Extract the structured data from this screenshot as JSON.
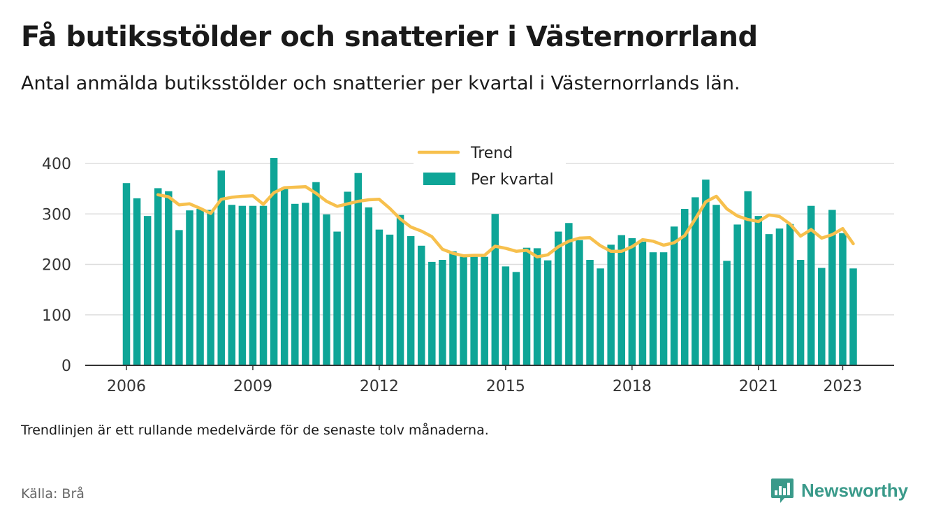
{
  "header": {
    "title": "Få butiksstölder och snatterier i Västernorrland",
    "subtitle": "Antal anmälda butiksstölder och snatterier per kvartal i Västernorrlands län."
  },
  "footer": {
    "note": "Trendlinjen är ett rullande medelvärde för de senaste tolv månaderna.",
    "source": "Källa: Brå",
    "brand": "Newsworthy"
  },
  "colors": {
    "bar": "#0ea597",
    "trend": "#f7c04d",
    "grid": "#dddddd",
    "axis": "#333333",
    "brand": "#3a9a8a"
  },
  "chart_data": {
    "type": "bar",
    "ylim": [
      0,
      450
    ],
    "y_ticks": [
      0,
      100,
      200,
      300,
      400
    ],
    "x_ticks": [
      "2006",
      "2009",
      "2012",
      "2015",
      "2018",
      "2021",
      "2023"
    ],
    "x_tick_quarter_index": [
      0,
      12,
      24,
      36,
      48,
      60,
      68
    ],
    "grid": true,
    "legend": {
      "position": "top-center",
      "entries": [
        "Trend",
        "Per kvartal"
      ]
    },
    "series": [
      {
        "name": "Per kvartal",
        "type": "bar",
        "values": [
          361,
          331,
          296,
          351,
          345,
          268,
          307,
          310,
          308,
          386,
          318,
          316,
          316,
          316,
          411,
          351,
          320,
          322,
          363,
          299,
          265,
          344,
          381,
          313,
          269,
          259,
          298,
          256,
          237,
          205,
          209,
          226,
          215,
          215,
          215,
          300,
          196,
          185,
          233,
          232,
          208,
          265,
          282,
          248,
          209,
          192,
          239,
          258,
          252,
          245,
          224,
          224,
          275,
          310,
          333,
          368,
          318,
          207,
          279,
          345,
          296,
          260,
          271,
          280,
          209,
          316,
          193,
          308,
          262,
          192
        ]
      },
      {
        "name": "Trend",
        "type": "line",
        "start_index": 3,
        "values": [
          338,
          334,
          318,
          320,
          311,
          301,
          329,
          333,
          335,
          336,
          319,
          342,
          352,
          353,
          354,
          341,
          325,
          315,
          320,
          325,
          328,
          329,
          311,
          290,
          274,
          266,
          255,
          230,
          222,
          217,
          218,
          218,
          236,
          232,
          226,
          228,
          215,
          219,
          235,
          246,
          252,
          253,
          237,
          226,
          226,
          235,
          249,
          246,
          238,
          243,
          257,
          290,
          324,
          335,
          310,
          296,
          289,
          285,
          298,
          295,
          280,
          256,
          269,
          252,
          259,
          271,
          241
        ]
      }
    ]
  }
}
